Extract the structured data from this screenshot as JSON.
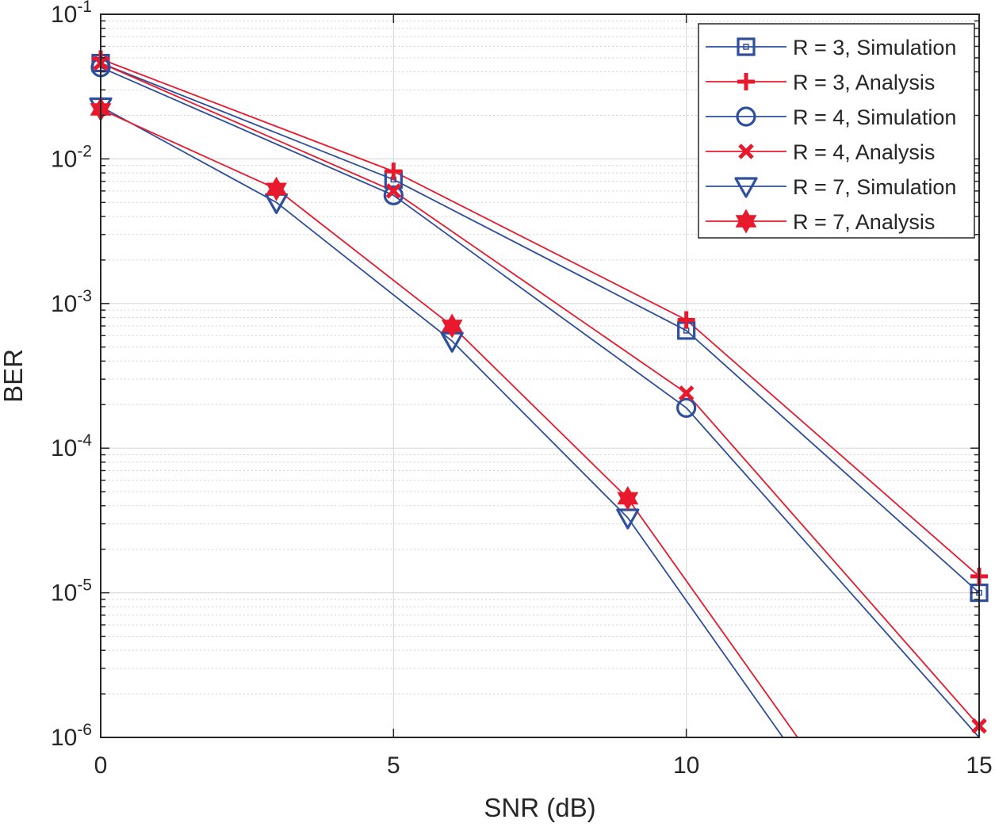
{
  "chart_data": {
    "type": "line",
    "title": "",
    "xlabel": "SNR (dB)",
    "ylabel": "BER",
    "xscale": "linear",
    "yscale": "log",
    "xlim": [
      0,
      15
    ],
    "ylim": [
      1e-06,
      0.1
    ],
    "xticks": [
      0,
      5,
      10,
      15
    ],
    "xtick_labels": [
      "0",
      "5",
      "10",
      "15"
    ],
    "yticks": [
      {
        "value": 1e-06,
        "base": "10",
        "exp": "-6"
      },
      {
        "value": 1e-05,
        "base": "10",
        "exp": "-5"
      },
      {
        "value": 0.0001,
        "base": "10",
        "exp": "-4"
      },
      {
        "value": 0.001,
        "base": "10",
        "exp": "-3"
      },
      {
        "value": 0.01,
        "base": "10",
        "exp": "-2"
      },
      {
        "value": 0.1,
        "base": "10",
        "exp": "-1"
      }
    ],
    "grid": true,
    "minor_grid": true,
    "legend_position": "top-right",
    "series": [
      {
        "name": "R = 3, Simulation",
        "color": "#2e4e9e",
        "marker": "square",
        "line_x": [
          0,
          5,
          10,
          15
        ],
        "line_y": [
          0.046,
          0.0072,
          0.00065,
          1e-05
        ],
        "marker_x": [
          0,
          5,
          10,
          15
        ],
        "marker_y": [
          0.046,
          0.0072,
          0.00065,
          1e-05
        ]
      },
      {
        "name": "R = 3, Analysis",
        "color": "#e8192c",
        "marker": "plus",
        "line_x": [
          0,
          5,
          10,
          15
        ],
        "line_y": [
          0.049,
          0.0082,
          0.00077,
          1.3e-05
        ],
        "marker_x": [
          0,
          5,
          10,
          15
        ],
        "marker_y": [
          0.049,
          0.0082,
          0.00077,
          1.3e-05
        ]
      },
      {
        "name": "R = 4, Simulation",
        "color": "#2e4e9e",
        "marker": "circle",
        "line_x": [
          0,
          5,
          10,
          15
        ],
        "line_y": [
          0.043,
          0.0056,
          0.00019,
          1e-06
        ],
        "marker_x": [
          0,
          5,
          10
        ],
        "marker_y": [
          0.043,
          0.0056,
          0.00019
        ]
      },
      {
        "name": "R = 4, Analysis",
        "color": "#e8192c",
        "marker": "x",
        "line_x": [
          0,
          5,
          10,
          15
        ],
        "line_y": [
          0.046,
          0.006,
          0.00024,
          1.2e-06
        ],
        "marker_x": [
          0,
          5,
          10,
          15
        ],
        "marker_y": [
          0.046,
          0.006,
          0.00024,
          1.2e-06
        ]
      },
      {
        "name": "R = 7, Simulation",
        "color": "#2e4e9e",
        "marker": "triangle-down",
        "line_x": [
          0,
          3,
          6,
          9,
          11.65
        ],
        "line_y": [
          0.023,
          0.005,
          0.00055,
          3.3e-05,
          1e-06
        ],
        "marker_x": [
          0,
          3,
          6,
          9
        ],
        "marker_y": [
          0.023,
          0.005,
          0.00055,
          3.3e-05
        ]
      },
      {
        "name": "R = 7, Analysis",
        "color": "#e8192c",
        "marker": "hexagram",
        "line_x": [
          0,
          3,
          6,
          9,
          11.9
        ],
        "line_y": [
          0.022,
          0.0062,
          0.0007,
          4.5e-05,
          1e-06
        ],
        "marker_x": [
          0,
          3,
          6,
          9
        ],
        "marker_y": [
          0.022,
          0.0062,
          0.0007,
          4.5e-05
        ]
      }
    ]
  }
}
